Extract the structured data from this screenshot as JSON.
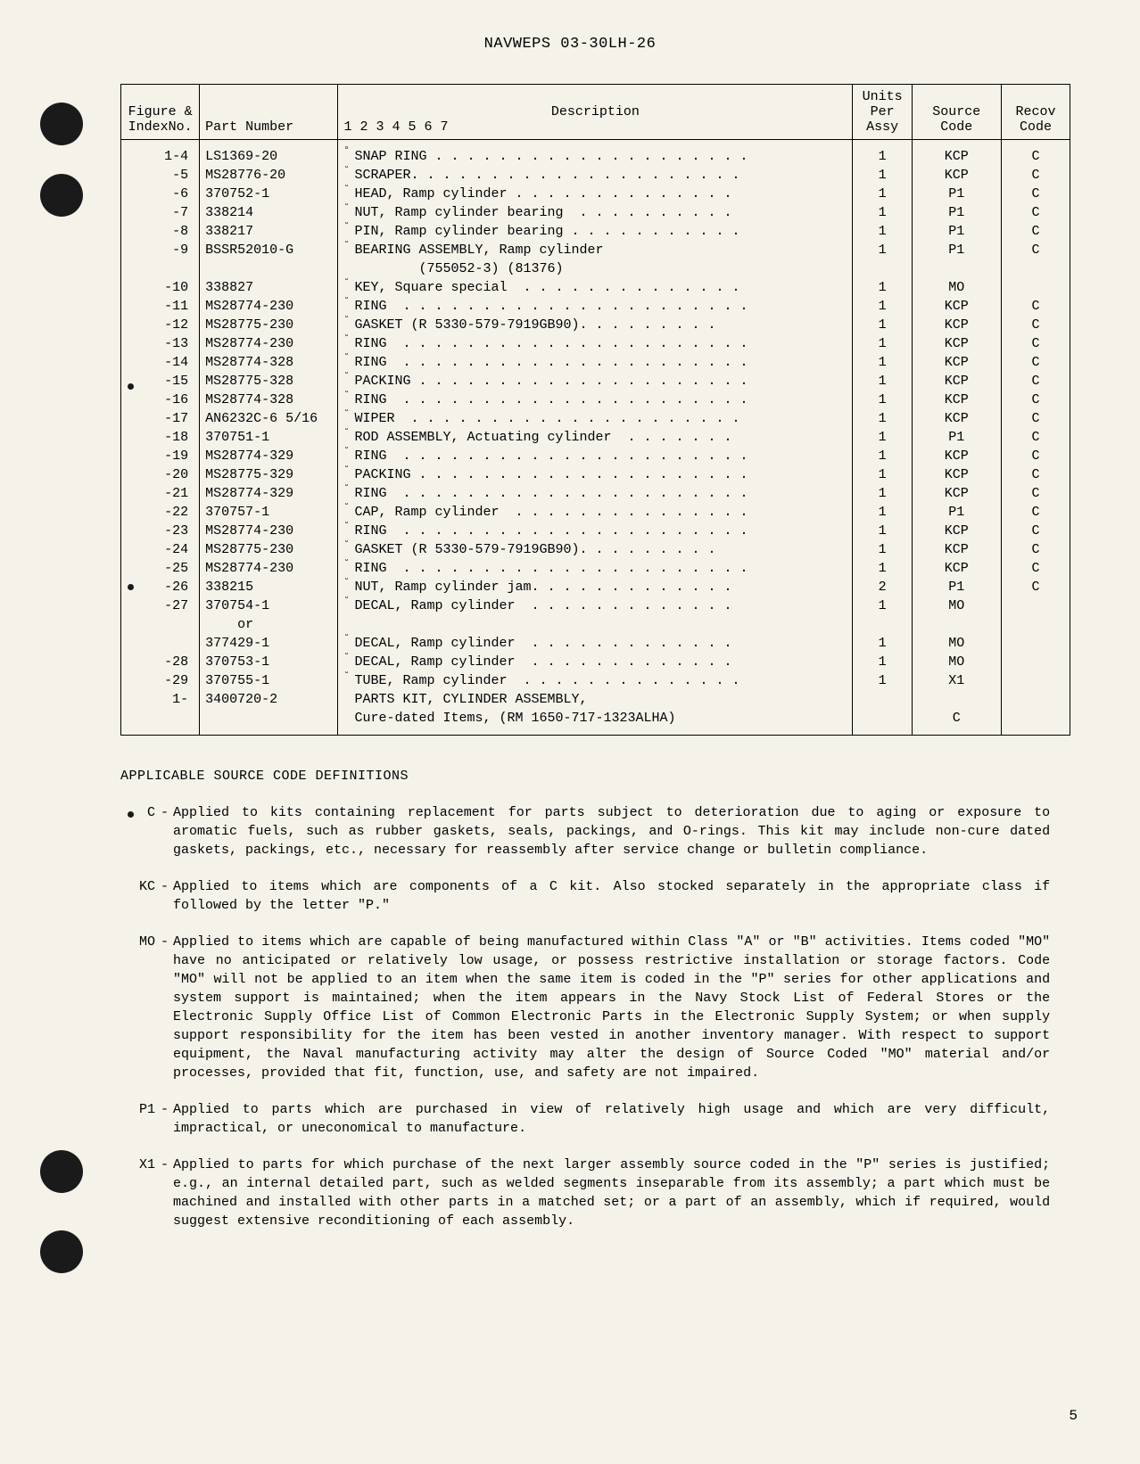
{
  "header": "NAVWEPS 03-30LH-26",
  "tableHeaders": {
    "figure": {
      "line1": "Figure &",
      "line2": "IndexNo."
    },
    "part": "Part Number",
    "description": {
      "main": "Description",
      "sub": "1  2  3  4  5  6  7"
    },
    "units": {
      "line1": "Units",
      "line2": "Per",
      "line3": "Assy"
    },
    "source": {
      "line1": "Source",
      "line2": "Code"
    },
    "recov": {
      "line1": "Recov",
      "line2": "Code"
    }
  },
  "rows": [
    {
      "figure": "1-4",
      "part": "LS1369-20",
      "indent": "°",
      "desc": "SNAP RING",
      "dots": " . . . . . . . . . . . . . . . . . . . .",
      "units": "1",
      "source": "KCP",
      "recov": "C"
    },
    {
      "figure": "-5",
      "part": "MS28776-20",
      "indent": "°",
      "desc": "SCRAPER",
      "dots": ". . . . . . . . . . . . . . . . . . . . .",
      "units": "1",
      "source": "KCP",
      "recov": "C"
    },
    {
      "figure": "-6",
      "part": "370752-1",
      "indent": "°",
      "desc": "HEAD, Ramp cylinder",
      "dots": " . . . . . . . . . . . . . .",
      "units": "1",
      "source": "P1",
      "recov": "C"
    },
    {
      "figure": "-7",
      "part": "338214",
      "indent": "°",
      "desc": "NUT, Ramp cylinder bearing",
      "dots": "  . . . . . . . . . .",
      "units": "1",
      "source": "P1",
      "recov": "C"
    },
    {
      "figure": "-8",
      "part": "338217",
      "indent": "°",
      "desc": "PIN, Ramp cylinder bearing",
      "dots": " . . . . . . . . . . .",
      "units": "1",
      "source": "P1",
      "recov": "C"
    },
    {
      "figure": "-9",
      "part": "BSSR52010-G",
      "indent": "°",
      "desc": "BEARING ASSEMBLY, Ramp cylinder",
      "dots": "",
      "units": "1",
      "source": "P1",
      "recov": "C"
    },
    {
      "figure": "",
      "part": "",
      "indent": "",
      "desc": "        (755052-3) (81376)",
      "dots": "",
      "units": "",
      "source": "",
      "recov": ""
    },
    {
      "figure": "-10",
      "part": "338827",
      "indent": "°",
      "desc": "KEY, Square special",
      "dots": "  . . . . . . . . . . . . . .",
      "units": "1",
      "source": "MO",
      "recov": ""
    },
    {
      "figure": "-11",
      "part": "MS28774-230",
      "indent": "°",
      "desc": "RING",
      "dots": "  . . . . . . . . . . . . . . . . . . . . . .",
      "units": "1",
      "source": "KCP",
      "recov": "C"
    },
    {
      "figure": "-12",
      "part": "MS28775-230",
      "indent": "°",
      "desc": "GASKET (R 5330-579-7919GB90)",
      "dots": ". . . . . . . . .",
      "units": "1",
      "source": "KCP",
      "recov": "C"
    },
    {
      "figure": "-13",
      "part": "MS28774-230",
      "indent": "°",
      "desc": "RING",
      "dots": "  . . . . . . . . . . . . . . . . . . . . . .",
      "units": "1",
      "source": "KCP",
      "recov": "C"
    },
    {
      "figure": "-14",
      "part": "MS28774-328",
      "indent": "°",
      "desc": "RING",
      "dots": "  . . . . . . . . . . . . . . . . . . . . . .",
      "units": "1",
      "source": "KCP",
      "recov": "C"
    },
    {
      "figure": "-15",
      "part": "MS28775-328",
      "indent": "°",
      "desc": "PACKING",
      "dots": " . . . . . . . . . . . . . . . . . . . . .",
      "units": "1",
      "source": "KCP",
      "recov": "C"
    },
    {
      "figure": "-16",
      "part": "MS28774-328",
      "indent": "°",
      "desc": "RING",
      "dots": "  . . . . . . . . . . . . . . . . . . . . . .",
      "units": "1",
      "source": "KCP",
      "recov": "C"
    },
    {
      "figure": "-17",
      "part": "AN6232C-6 5/16",
      "indent": "°",
      "desc": "WIPER",
      "dots": "  . . . . . . . . . . . . . . . . . . . . .",
      "units": "1",
      "source": "KCP",
      "recov": "C"
    },
    {
      "figure": "-18",
      "part": "370751-1",
      "indent": "°",
      "desc": "ROD ASSEMBLY, Actuating cylinder",
      "dots": "  . . . . . . .",
      "units": "1",
      "source": "P1",
      "recov": "C"
    },
    {
      "figure": "-19",
      "part": "MS28774-329",
      "indent": "°",
      "desc": "RING",
      "dots": "  . . . . . . . . . . . . . . . . . . . . . .",
      "units": "1",
      "source": "KCP",
      "recov": "C"
    },
    {
      "figure": "-20",
      "part": "MS28775-329",
      "indent": "°",
      "desc": "PACKING",
      "dots": " . . . . . . . . . . . . . . . . . . . . .",
      "units": "1",
      "source": "KCP",
      "recov": "C"
    },
    {
      "figure": "-21",
      "part": "MS28774-329",
      "indent": "°",
      "desc": "RING",
      "dots": "  . . . . . . . . . . . . . . . . . . . . . .",
      "units": "1",
      "source": "KCP",
      "recov": "C"
    },
    {
      "figure": "-22",
      "part": "370757-1",
      "indent": "°",
      "desc": "CAP, Ramp cylinder",
      "dots": "  . . . . . . . . . . . . . . .",
      "units": "1",
      "source": "P1",
      "recov": "C"
    },
    {
      "figure": "-23",
      "part": "MS28774-230",
      "indent": "°",
      "desc": "RING",
      "dots": "  . . . . . . . . . . . . . . . . . . . . . .",
      "units": "1",
      "source": "KCP",
      "recov": "C"
    },
    {
      "figure": "-24",
      "part": "MS28775-230",
      "indent": "°",
      "desc": "GASKET (R 5330-579-7919GB90)",
      "dots": ". . . . . . . . .",
      "units": "1",
      "source": "KCP",
      "recov": "C"
    },
    {
      "figure": "-25",
      "part": "MS28774-230",
      "indent": "°",
      "desc": "RING",
      "dots": "  . . . . . . . . . . . . . . . . . . . . . .",
      "units": "1",
      "source": "KCP",
      "recov": "C"
    },
    {
      "figure": "-26",
      "part": "338215",
      "indent": "°",
      "desc": "NUT, Ramp cylinder jam",
      "dots": ". . . . . . . . . . . . .",
      "units": "2",
      "source": "P1",
      "recov": "C"
    },
    {
      "figure": "-27",
      "part": "370754-1",
      "indent": "°",
      "desc": "DECAL, Ramp cylinder",
      "dots": "  . . . . . . . . . . . . .",
      "units": "1",
      "source": "MO",
      "recov": ""
    },
    {
      "figure": "",
      "part": "    or",
      "indent": "",
      "desc": "",
      "dots": "",
      "units": "",
      "source": "",
      "recov": ""
    },
    {
      "figure": "",
      "part": "377429-1",
      "indent": "°",
      "desc": "DECAL, Ramp cylinder",
      "dots": "  . . . . . . . . . . . . .",
      "units": "1",
      "source": "MO",
      "recov": ""
    },
    {
      "figure": "-28",
      "part": "370753-1",
      "indent": "°",
      "desc": "DECAL, Ramp cylinder",
      "dots": "  . . . . . . . . . . . . .",
      "units": "1",
      "source": "MO",
      "recov": ""
    },
    {
      "figure": "-29",
      "part": "370755-1",
      "indent": "°",
      "desc": "TUBE, Ramp cylinder",
      "dots": "  . . . . . . . . . . . . . .",
      "units": "1",
      "source": "X1",
      "recov": ""
    },
    {
      "figure": "1-    ",
      "part": "3400720-2",
      "indent": "",
      "desc": "PARTS KIT, CYLINDER ASSEMBLY,",
      "dots": "",
      "units": "",
      "source": "",
      "recov": ""
    },
    {
      "figure": "",
      "part": "",
      "indent": "",
      "desc": "Cure-dated Items, (RM 1650-717-1323ALHA)",
      "dots": "",
      "units": "",
      "source": "C",
      "recov": ""
    }
  ],
  "definitionsTitle": "APPLICABLE SOURCE CODE DEFINITIONS",
  "definitions": [
    {
      "code": "C",
      "text": "Applied to kits containing replacement for parts subject to deterioration due to aging or exposure to aromatic fuels, such as rubber gaskets, seals, packings, and O-rings. This kit may include non-cure dated gaskets, packings, etc., necessary for reassembly after service change or bulletin compliance."
    },
    {
      "code": "KC",
      "text": "Applied to items which are components of a C kit. Also stocked separately in the appropriate class if followed by the letter \"P.\""
    },
    {
      "code": "MO",
      "text": "Applied to items which are capable of being manufactured within Class \"A\" or \"B\" activities. Items coded \"MO\" have no anticipated or relatively low usage, or possess restrictive installation or storage factors. Code \"MO\" will not be applied to an item when the same item is coded in the \"P\" series for other applications and system support is maintained; when the item appears in the Navy Stock List of Federal Stores or the Electronic Supply Office List of Common Electronic Parts in the Electronic Supply System; or when supply support responsibility for the item has been vested in another inventory manager. With respect to support equipment, the Naval manufacturing activity may alter the design of Source Coded \"MO\" material and/or processes, provided that fit, function, use, and safety are not impaired."
    },
    {
      "code": "P1",
      "text": "Applied to parts which are purchased in view of relatively high usage and which are very difficult, impractical, or uneconomical to manufacture."
    },
    {
      "code": "X1",
      "text": "Applied to parts for which purchase of the next larger assembly source coded in the \"P\" series is justified; e.g., an internal detailed part, such as welded segments inseparable from its assembly; a part which must be machined and installed with other parts in a matched set; or a part of an assembly, which if required, would suggest extensive reconditioning of each assembly."
    }
  ],
  "pageNumber": "5"
}
